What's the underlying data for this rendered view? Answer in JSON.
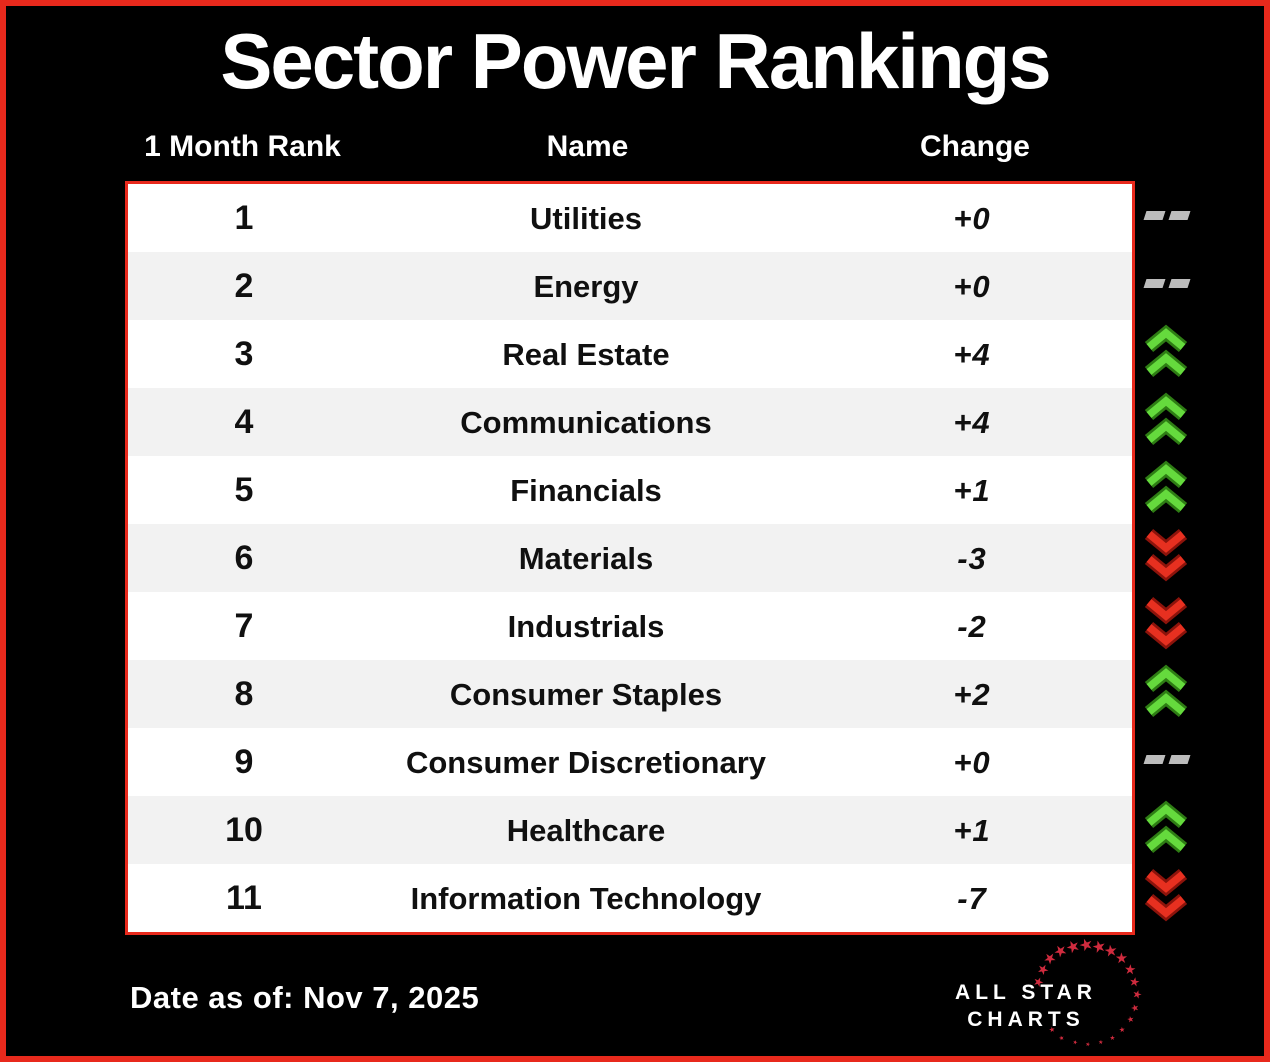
{
  "title": "Sector Power Rankings",
  "columns": {
    "rank": "1 Month Rank",
    "name": "Name",
    "change": "Change"
  },
  "rows": [
    {
      "rank": "1",
      "name": "Utilities",
      "change": "+0",
      "direction": "flat"
    },
    {
      "rank": "2",
      "name": "Energy",
      "change": "+0",
      "direction": "flat"
    },
    {
      "rank": "3",
      "name": "Real Estate",
      "change": "+4",
      "direction": "up"
    },
    {
      "rank": "4",
      "name": "Communications",
      "change": "+4",
      "direction": "up"
    },
    {
      "rank": "5",
      "name": "Financials",
      "change": "+1",
      "direction": "up"
    },
    {
      "rank": "6",
      "name": "Materials",
      "change": "-3",
      "direction": "down"
    },
    {
      "rank": "7",
      "name": "Industrials",
      "change": "-2",
      "direction": "down"
    },
    {
      "rank": "8",
      "name": "Consumer Staples",
      "change": "+2",
      "direction": "up"
    },
    {
      "rank": "9",
      "name": "Consumer Discretionary",
      "change": "+0",
      "direction": "flat"
    },
    {
      "rank": "10",
      "name": "Healthcare",
      "change": "+1",
      "direction": "up"
    },
    {
      "rank": "11",
      "name": "Information Technology",
      "change": "-7",
      "direction": "down"
    }
  ],
  "footer": {
    "date_label": "Date as of: Nov 7, 2025"
  },
  "logo": {
    "line1": "ALL STAR",
    "line2": "CHARTS",
    "star_glyph": "★"
  },
  "icons": {
    "up": "double-chevron-up-icon",
    "down": "double-chevron-down-icon",
    "flat": "double-dash-icon"
  },
  "colors": {
    "background": "#000000",
    "border_red": "#e8291c",
    "row_white": "#ffffff",
    "row_alt": "#f2f2f2",
    "text_dark": "#101010",
    "text_white": "#ffffff",
    "up_green_bright": "#65da3d",
    "up_green_dark": "#2e7d14",
    "down_red_bright": "#e73020",
    "down_red_dark": "#8c130b",
    "flat_gray": "#bcbcbc",
    "star_red": "#cf2b3e"
  },
  "chart_data": {
    "type": "table",
    "title": "Sector Power Rankings",
    "columns": [
      "1 Month Rank",
      "Name",
      "Change"
    ],
    "rows": [
      [
        1,
        "Utilities",
        "+0"
      ],
      [
        2,
        "Energy",
        "+0"
      ],
      [
        3,
        "Real Estate",
        "+4"
      ],
      [
        4,
        "Communications",
        "+4"
      ],
      [
        5,
        "Financials",
        "+1"
      ],
      [
        6,
        "Materials",
        "-3"
      ],
      [
        7,
        "Industrials",
        "-2"
      ],
      [
        8,
        "Consumer Staples",
        "+2"
      ],
      [
        9,
        "Consumer Discretionary",
        "+0"
      ],
      [
        10,
        "Healthcare",
        "+1"
      ],
      [
        11,
        "Information Technology",
        "-7"
      ]
    ],
    "change_direction": [
      "flat",
      "flat",
      "up",
      "up",
      "up",
      "down",
      "down",
      "up",
      "flat",
      "up",
      "down"
    ],
    "as_of_date": "Nov 7, 2025",
    "source": "ALL STAR CHARTS"
  }
}
